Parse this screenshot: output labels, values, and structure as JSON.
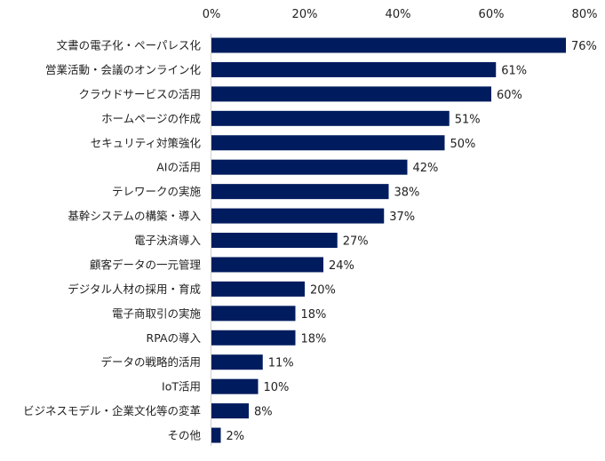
{
  "chart_data": {
    "type": "bar",
    "orientation": "horizontal",
    "categories": [
      "文書の電子化・ペーパレス化",
      "営業活動・会議のオンライン化",
      "クラウドサービスの活用",
      "ホームページの作成",
      "セキュリティ対策強化",
      "AIの活用",
      "テレワークの実施",
      "基幹システムの構築・導入",
      "電子決済導入",
      "顧客データの一元管理",
      "デジタル人材の採用・育成",
      "電子商取引の実施",
      "RPAの導入",
      "データの戦略的活用",
      "IoT活用",
      "ビジネスモデル・企業文化等の変革",
      "その他"
    ],
    "values": [
      76,
      61,
      60,
      51,
      50,
      42,
      38,
      37,
      27,
      24,
      20,
      18,
      18,
      11,
      10,
      8,
      2
    ],
    "data_labels": [
      "76%",
      "61%",
      "60%",
      "51%",
      "50%",
      "42%",
      "38%",
      "37%",
      "27%",
      "24%",
      "20%",
      "18%",
      "18%",
      "11%",
      "10%",
      "8%",
      "2%"
    ],
    "xlim": [
      0,
      80
    ],
    "x_ticks": [
      "0%",
      "20%",
      "40%",
      "60%",
      "80%"
    ],
    "x_tick_values": [
      0,
      20,
      40,
      60,
      80
    ],
    "axis_position": "top",
    "grid": false,
    "bar_color": "#001c5e"
  }
}
